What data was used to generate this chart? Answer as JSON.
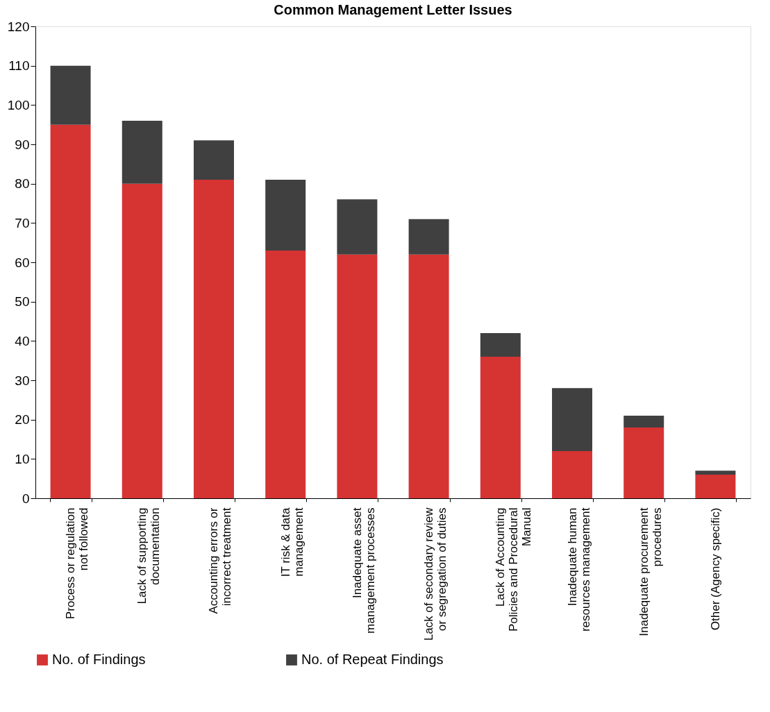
{
  "chart_data": {
    "type": "bar",
    "title": "Common Management  Letter Issues",
    "categories": [
      "Process or regulation not followed",
      "Lack of supporting documentation",
      "Accounting errors or incorrect treatment",
      "IT risk & data management",
      "Inadequate asset management processes",
      "Lack of secondary review or segregation of duties",
      "Lack of Accounting Policies and Procedural Manual",
      "Inadequate human resources management",
      "Inadequate procurement procedures",
      "Other (Agency specific)"
    ],
    "series": [
      {
        "name": "No. of Findings",
        "color": "#d63333",
        "values": [
          95,
          80,
          81,
          63,
          62,
          62,
          36,
          12,
          18,
          6
        ]
      },
      {
        "name": "No. of Repeat Findings",
        "color": "#404040",
        "values": [
          15,
          16,
          10,
          18,
          14,
          9,
          6,
          16,
          3,
          1
        ]
      }
    ],
    "stacked": true,
    "ylim": [
      0,
      120
    ],
    "yticks": [
      0,
      10,
      20,
      30,
      40,
      50,
      60,
      70,
      80,
      90,
      100,
      110,
      120
    ],
    "grid": false,
    "legend": "bottom"
  }
}
